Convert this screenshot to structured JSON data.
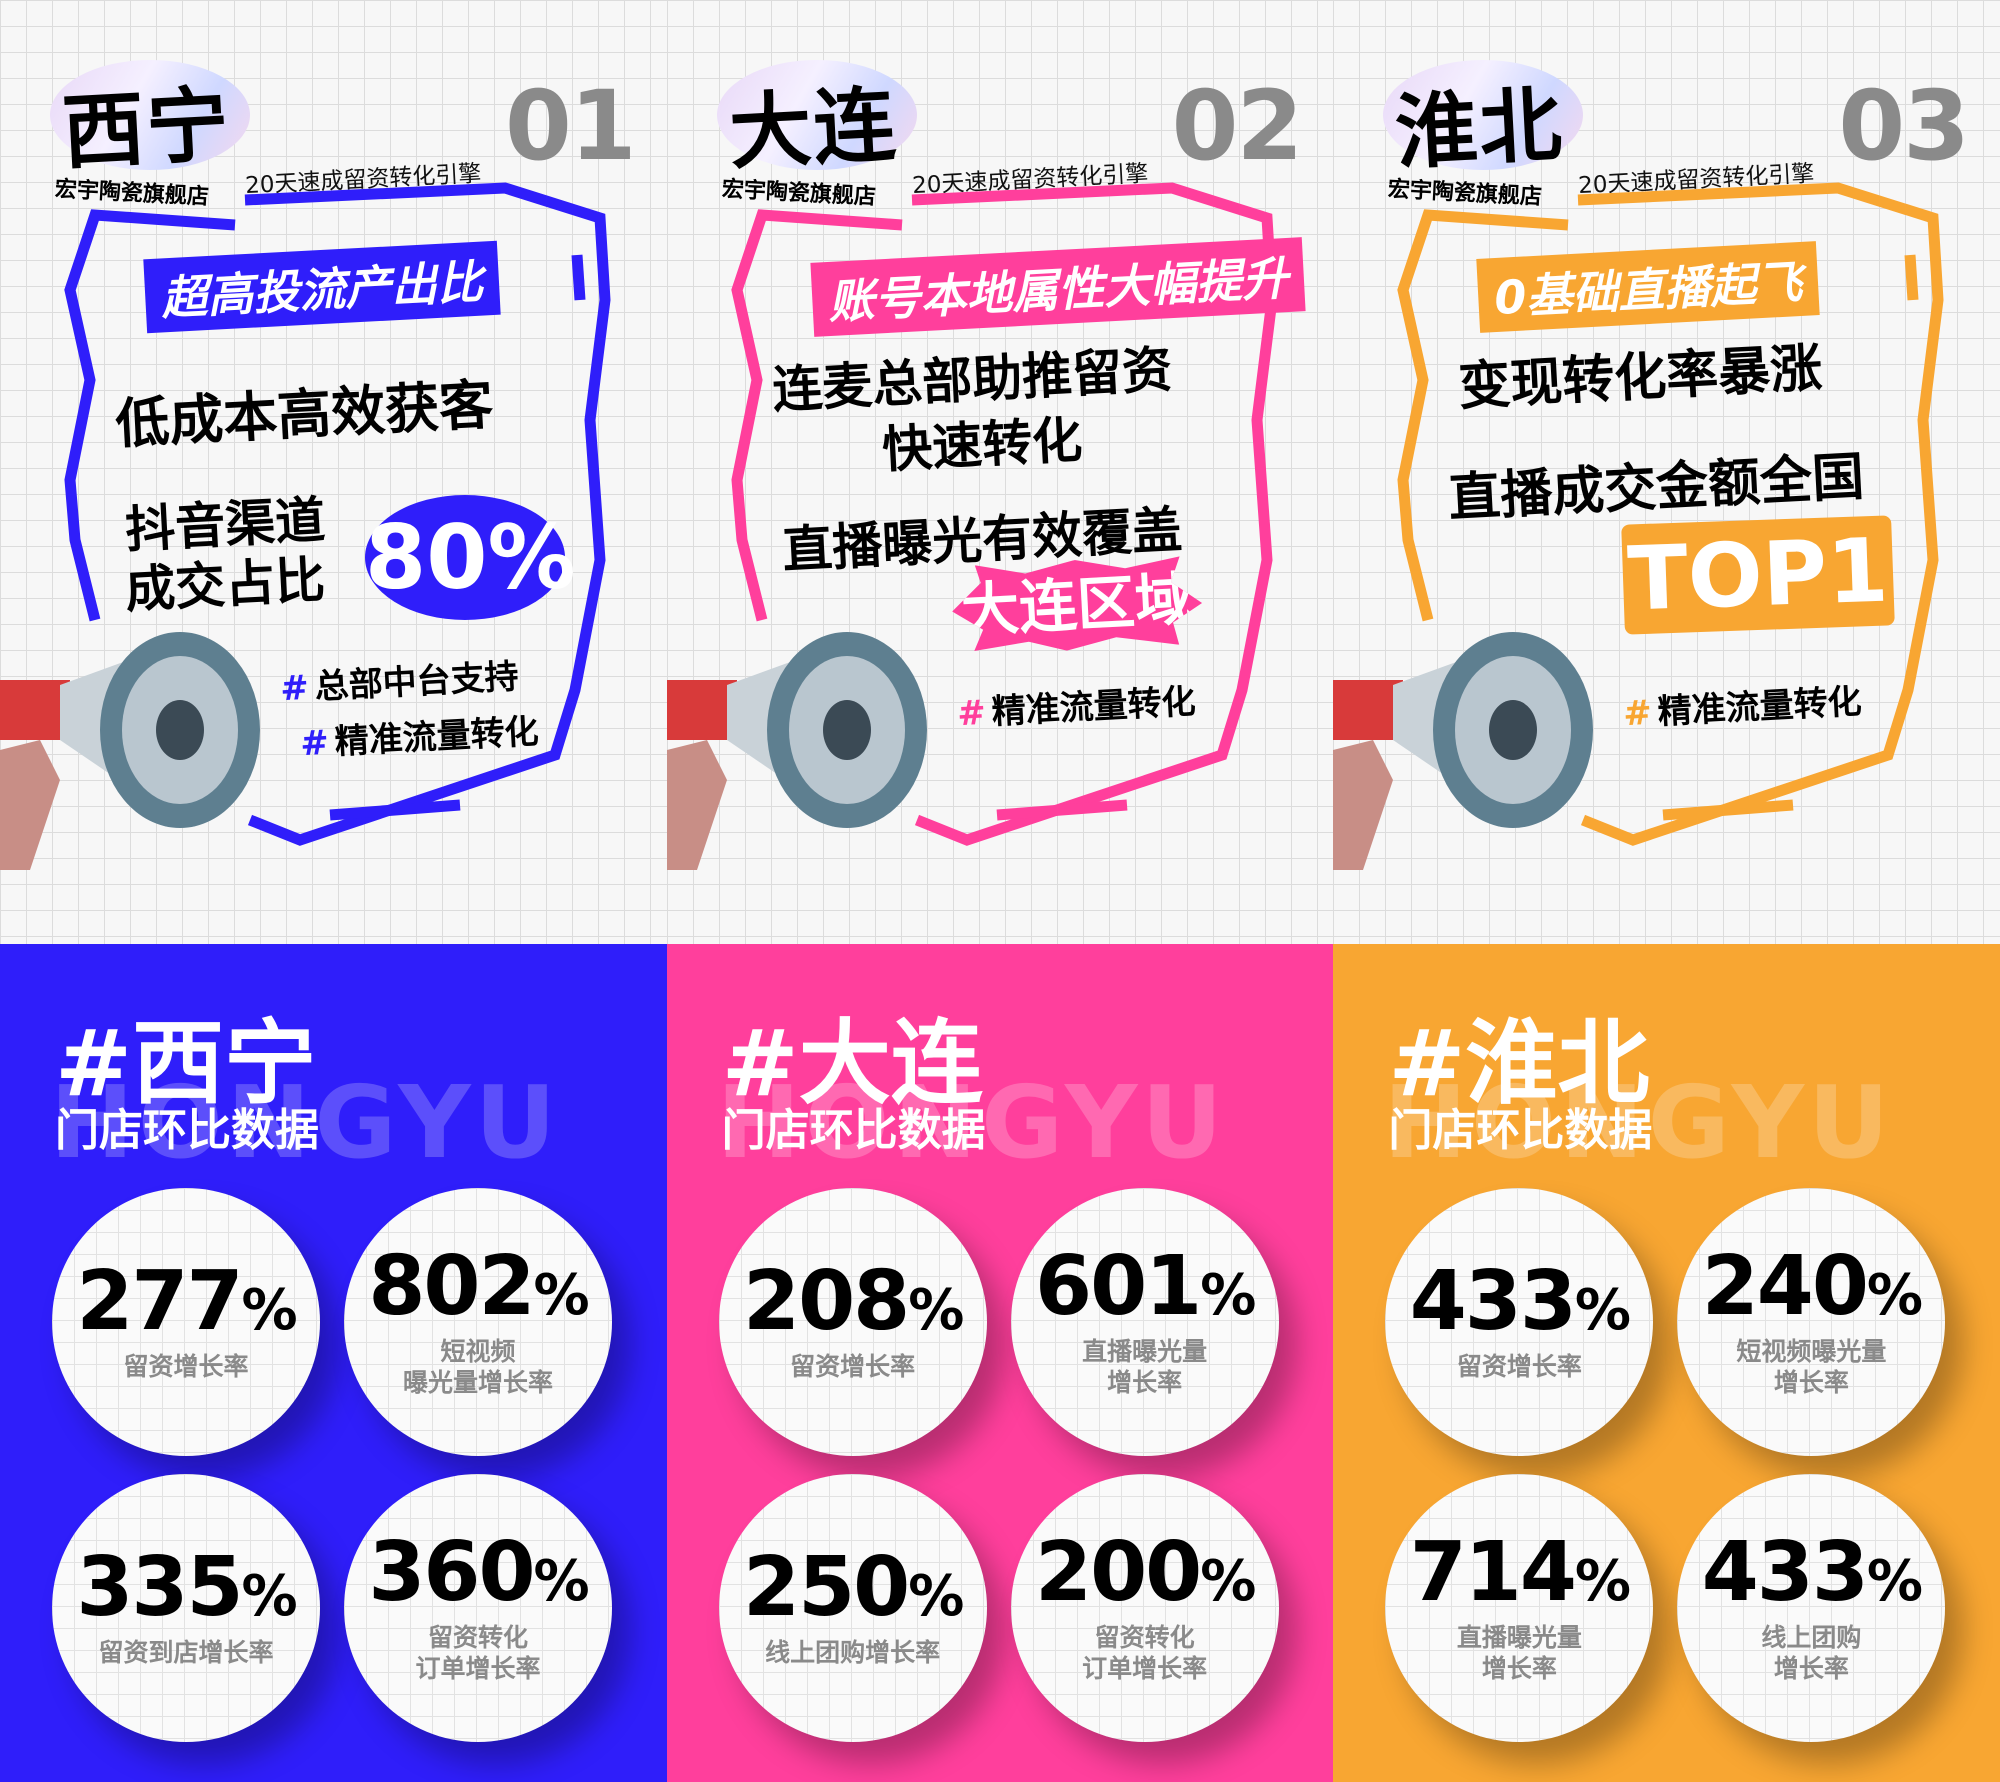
{
  "store_name": "宏宇陶瓷旗舰店",
  "slogan": "20天速成留资转化引擎",
  "subtitle": "门店环比数据",
  "watermark": "HONGYU",
  "panels": [
    {
      "city": "西宁",
      "number": "01",
      "color": "#2f1efa",
      "tag": "超高投流产出比",
      "lines": [
        "低成本高效获客",
        "抖音渠道",
        "成交占比"
      ],
      "highlight": "80%",
      "hashtags": [
        "总部中台支持",
        "精准流量转化"
      ],
      "title": "#西宁",
      "stats": [
        {
          "value": "277",
          "unit": "%",
          "label": "留资增长率"
        },
        {
          "value": "802",
          "unit": "%",
          "label": "短视频\n曝光量增长率"
        },
        {
          "value": "335",
          "unit": "%",
          "label": "留资到店增长率"
        },
        {
          "value": "360",
          "unit": "%",
          "label": "留资转化\n订单增长率"
        }
      ]
    },
    {
      "city": "大连",
      "number": "02",
      "color": "#ff3f9c",
      "tag": "账号本地属性大幅提升",
      "lines": [
        "连麦总部助推留资",
        "快速转化",
        "直播曝光有效覆盖"
      ],
      "highlight": "大连区域",
      "hashtags": [
        "精准流量转化"
      ],
      "title": "#大连",
      "stats": [
        {
          "value": "208",
          "unit": "%",
          "label": "留资增长率"
        },
        {
          "value": "601",
          "unit": "%",
          "label": "直播曝光量\n增长率"
        },
        {
          "value": "250",
          "unit": "%",
          "label": "线上团购增长率"
        },
        {
          "value": "200",
          "unit": "%",
          "label": "留资转化\n订单增长率"
        }
      ]
    },
    {
      "city": "淮北",
      "number": "03",
      "color": "#f8a632",
      "tag": "0基础直播起飞",
      "lines": [
        "变现转化率暴涨",
        "直播成交金额全国"
      ],
      "highlight": "TOP1",
      "hashtags": [
        "精准流量转化"
      ],
      "title": "#淮北",
      "stats": [
        {
          "value": "433",
          "unit": "%",
          "label": "留资增长率"
        },
        {
          "value": "240",
          "unit": "%",
          "label": "短视频曝光量\n增长率"
        },
        {
          "value": "714",
          "unit": "%",
          "label": "直播曝光量\n增长率"
        },
        {
          "value": "433",
          "unit": "%",
          "label": "线上团购\n增长率"
        }
      ]
    }
  ]
}
